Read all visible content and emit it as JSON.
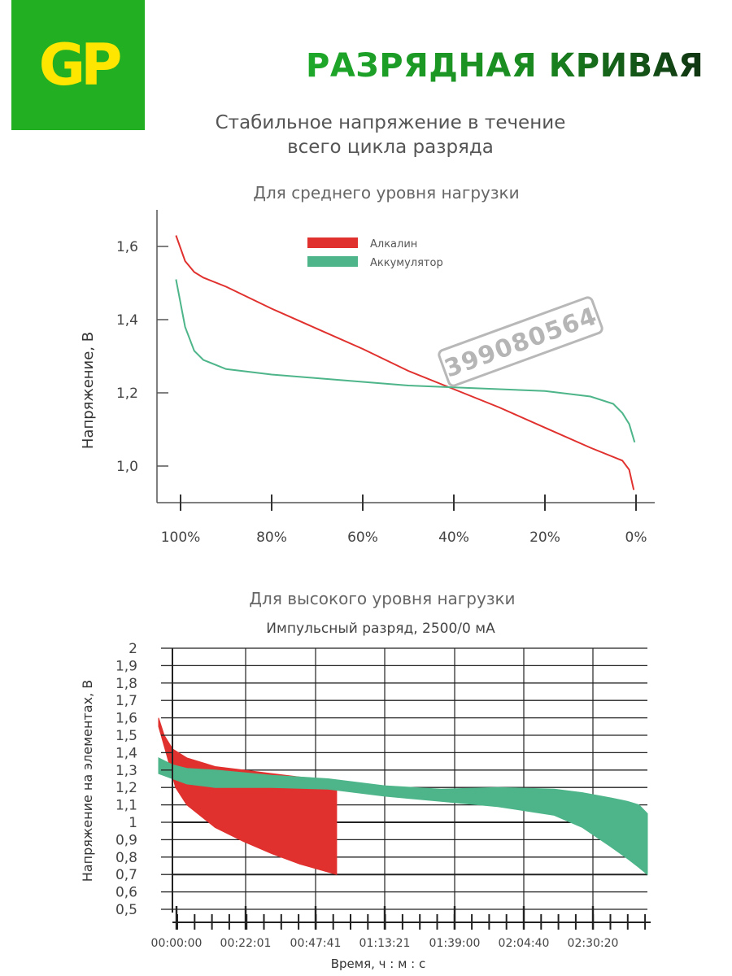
{
  "header": {
    "logo_text": "GP",
    "title": "РАЗРЯДНАЯ КРИВАЯ",
    "subtitle_line1": "Стабильное напряжение в течение",
    "subtitle_line2": "всего цикла разряда",
    "watermark": "399080564"
  },
  "colors": {
    "brand_green": "#22b022",
    "logo_yellow": "#ffe600",
    "alkaline": "#e0312e",
    "accumulator": "#4db589"
  },
  "chart_data": [
    {
      "type": "line",
      "title": "Для среднего уровня нагрузки",
      "ylabel": "Напряжение, В",
      "xlabel": "",
      "ylim": [
        0.9,
        1.7
      ],
      "xlim": [
        100,
        0
      ],
      "xticks": [
        "100%",
        "80%",
        "60%",
        "40%",
        "20%",
        "0%"
      ],
      "yticks": [
        "1,0",
        "1,2",
        "1,4",
        "1,6"
      ],
      "legend_position": "top-left",
      "series": [
        {
          "name": "Алкалин",
          "x": [
            101,
            99,
            97,
            95,
            90,
            80,
            70,
            60,
            50,
            40,
            30,
            20,
            10,
            3,
            1.5,
            0.5
          ],
          "y": [
            1.63,
            1.56,
            1.53,
            1.515,
            1.49,
            1.43,
            1.375,
            1.32,
            1.26,
            1.21,
            1.16,
            1.105,
            1.05,
            1.015,
            0.99,
            0.935
          ]
        },
        {
          "name": "Аккумулятор",
          "x": [
            101,
            99,
            97,
            95,
            90,
            80,
            70,
            60,
            50,
            40,
            30,
            20,
            10,
            5,
            3,
            1.5,
            0.3
          ],
          "y": [
            1.51,
            1.38,
            1.315,
            1.29,
            1.265,
            1.25,
            1.24,
            1.23,
            1.22,
            1.215,
            1.21,
            1.205,
            1.19,
            1.17,
            1.145,
            1.115,
            1.065
          ]
        }
      ]
    },
    {
      "type": "area",
      "title": "Для высокого уровня нагрузки",
      "subtitle": "Импульсный разряд, 2500/0 мА",
      "ylabel": "Напряжение на элементах, В",
      "xlabel": "Время, ч : м : с",
      "ylim": [
        0.5,
        2
      ],
      "yticks": [
        "2",
        "1,9",
        "1,8",
        "1,7",
        "1,6",
        "1,5",
        "1,4",
        "1,3",
        "1,2",
        "1,1",
        "1",
        "0,9",
        "0,8",
        "0,7",
        "0,6",
        "0,5"
      ],
      "xticks": [
        "00:00:00",
        "00:22:01",
        "00:47:41",
        "01:13:21",
        "01:39:00",
        "02:04:40",
        "02:30:20"
      ],
      "xlim_minutes": [
        0,
        173
      ],
      "series": [
        {
          "name": "",
          "color": "alkaline",
          "upper": {
            "x_minutes": [
              0,
              2,
              5,
              10,
              20,
              30,
              40,
              50,
              63
            ],
            "y": [
              1.6,
              1.5,
              1.42,
              1.37,
              1.32,
              1.3,
              1.28,
              1.26,
              1.24
            ]
          },
          "lower": {
            "x_minutes": [
              0,
              3,
              6,
              10,
              20,
              30,
              40,
              50,
              63
            ],
            "y": [
              1.55,
              1.38,
              1.2,
              1.1,
              0.97,
              0.89,
              0.82,
              0.76,
              0.7
            ]
          }
        },
        {
          "name": "",
          "color": "accumulator",
          "upper": {
            "x_minutes": [
              0,
              5,
              10,
              20,
              40,
              60,
              80,
              100,
              120,
              140,
              150,
              160,
              166,
              170,
              173
            ],
            "y": [
              1.37,
              1.33,
              1.31,
              1.3,
              1.27,
              1.25,
              1.21,
              1.19,
              1.2,
              1.19,
              1.17,
              1.14,
              1.12,
              1.1,
              1.05
            ]
          },
          "lower": {
            "x_minutes": [
              0,
              5,
              10,
              20,
              40,
              60,
              80,
              100,
              120,
              140,
              150,
              160,
              166,
              170,
              173
            ],
            "y": [
              1.28,
              1.25,
              1.22,
              1.2,
              1.2,
              1.19,
              1.15,
              1.12,
              1.09,
              1.04,
              0.97,
              0.86,
              0.79,
              0.74,
              0.7
            ]
          }
        }
      ]
    }
  ]
}
